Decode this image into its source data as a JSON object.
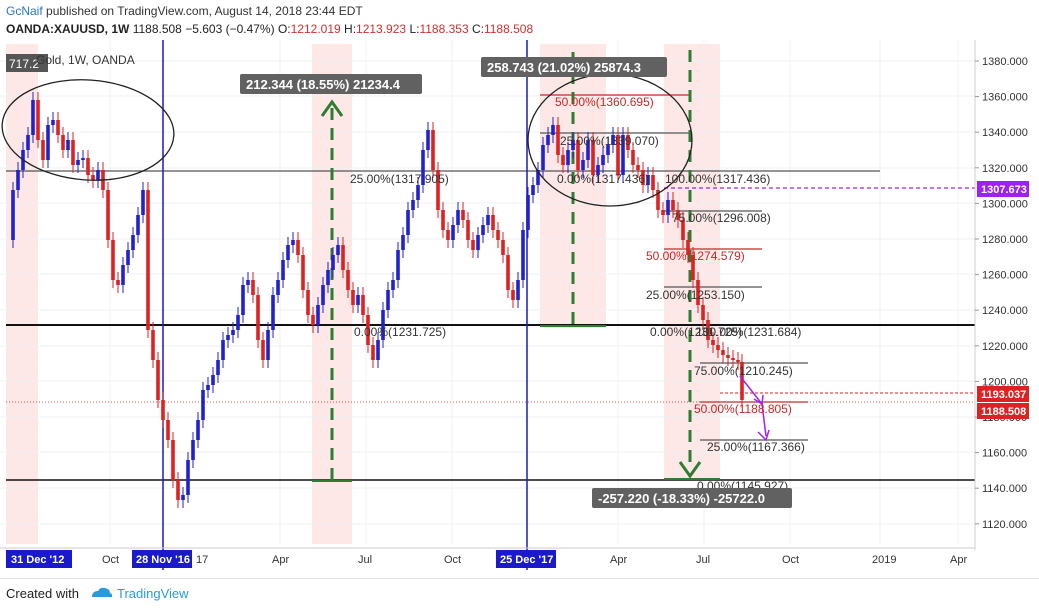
{
  "header": {
    "user": "GcNaif",
    "published_text": "published on TradingView.com, August 14, 2018 23:44 EDT",
    "symbol": "OANDA:XAUUSD, 1W",
    "last": "1188.508",
    "change": "−5.603 (−0.47%)",
    "o_label": "O:",
    "o_val": "1212.019",
    "h_label": "H:",
    "h_val": "1213.923",
    "l_label": "L:",
    "l_val": "1188.353",
    "c_label": "C:",
    "c_val": "1188.508"
  },
  "legend": {
    "text": "Gold, 1W, OANDA",
    "badge": "717.2"
  },
  "price_axis": {
    "ticks": [
      "1380.000",
      "1360.000",
      "1340.000",
      "1320.000",
      "1300.000",
      "1280.000",
      "1260.000",
      "1240.000",
      "1220.000",
      "1200.000",
      "1180.000",
      "1160.000",
      "1140.000",
      "1120.000"
    ],
    "label_purple": "1307.673",
    "label_red1": "1193.037",
    "label_red2": "1188.508"
  },
  "time_axis": {
    "labels": [
      "Oct",
      "Apr",
      "Jul",
      "Oct",
      "Apr",
      "Jul",
      "Oct",
      "2019",
      "Apr"
    ],
    "markers": [
      "31 Dec '12",
      "28 Nov '16",
      "25 Dec '17"
    ],
    "partial": "17"
  },
  "annotations": {
    "measure_up": "212.344 (18.55%) 21234.4",
    "measure_up2": "258.743 (21.02%) 25874.3",
    "measure_down": "-257.220 (-18.33%) -25722.0",
    "fib1_25": "25.00%(1317.905)",
    "fib1_0": "0.00%(1231.725)",
    "fib2_50": "50.00%(1360.695)",
    "fib2_25": "25.00%(1339.070)",
    "fib2_0": "0.00%(1317.436)",
    "fib2_100": "100.00%(1317.436)",
    "fib3_75": "75.00%(1296.008)",
    "fib3_50": "50.00%(1274.579)",
    "fib3_25": "25.00%(1253.150)",
    "fib3_0": "0.00%(1231.725)",
    "fib3_100": "100.00%(1231.684)",
    "fib4_75": "75.00%(1210.245)",
    "fib4_50": "50.00%(1188.805)",
    "fib4_25": "25.00%(1167.366)",
    "fib4_0": "0.00%(1145.927)"
  },
  "footer": {
    "created": "Created with",
    "brand": "TradingView"
  },
  "colors": {
    "up": "#2222cc",
    "down": "#dd2222",
    "purple": "#a020f0",
    "green": "#2e7d32",
    "blue": "#1a1acc"
  }
}
